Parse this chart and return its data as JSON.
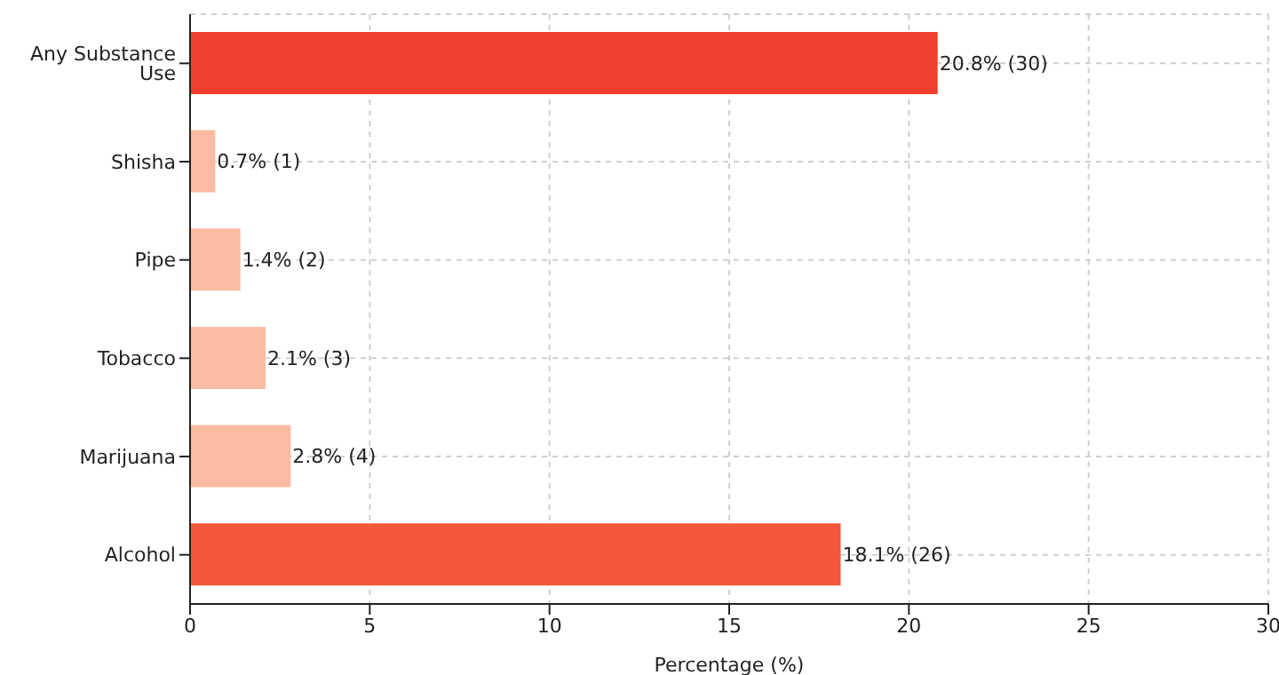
{
  "chart_data": {
    "type": "bar",
    "orientation": "horizontal",
    "xlabel": "Percentage (%)",
    "categories": [
      "Any Substance Use",
      "Shisha",
      "Pipe",
      "Tobacco",
      "Marijuana",
      "Alcohol"
    ],
    "values": [
      20.8,
      0.7,
      1.4,
      2.1,
      2.8,
      18.1
    ],
    "colors": [
      "#f03f2e",
      "#fcbba1",
      "#fcbba1",
      "#fcbba1",
      "#fcbba1",
      "#f4563a"
    ],
    "value_labels": [
      "20.8% (30)",
      "0.7% (1)",
      "1.4% (2)",
      "2.1% (3)",
      "2.8% (4)",
      "18.1% (26)"
    ],
    "xlim": [
      0,
      30
    ],
    "xticks": [
      0,
      5,
      10,
      15,
      20,
      25,
      30
    ],
    "grid": true
  }
}
